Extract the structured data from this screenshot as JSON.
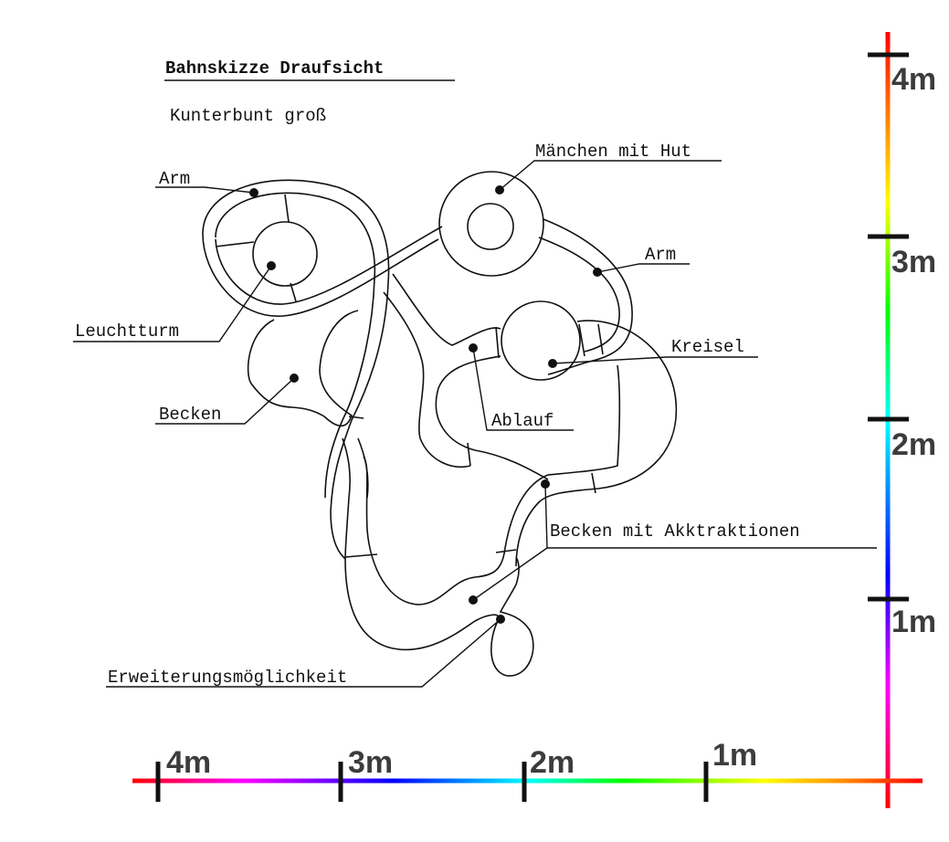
{
  "title": "Bahnskizze  Draufsicht",
  "subtitle": "Kunterbunt groß",
  "labels": {
    "arm_left": "Arm",
    "leuchtturm": "Leuchtturm",
    "becken": "Becken",
    "maenchen": "Mänchen mit Hut",
    "arm_right": "Arm",
    "kreisel": "Kreisel",
    "ablauf": "Ablauf",
    "becken_akk": "Becken mit Akktraktionen",
    "erweiterung": "Erweiterungsmöglichkeit"
  },
  "scale": {
    "vertical": [
      "4m",
      "3m",
      "2m",
      "1m"
    ],
    "horizontal": [
      "4m",
      "3m",
      "2m",
      "1m"
    ]
  },
  "colors": {
    "line": "#111111",
    "scale_text": "#3c3c3c",
    "gradient_red": "#ff0000",
    "gradient_orange": "#ff8c00",
    "gradient_yellow": "#ffff00",
    "gradient_green": "#00ff00",
    "gradient_cyan": "#00ffff",
    "gradient_blue": "#0000ff",
    "gradient_magenta": "#ff00ff"
  }
}
